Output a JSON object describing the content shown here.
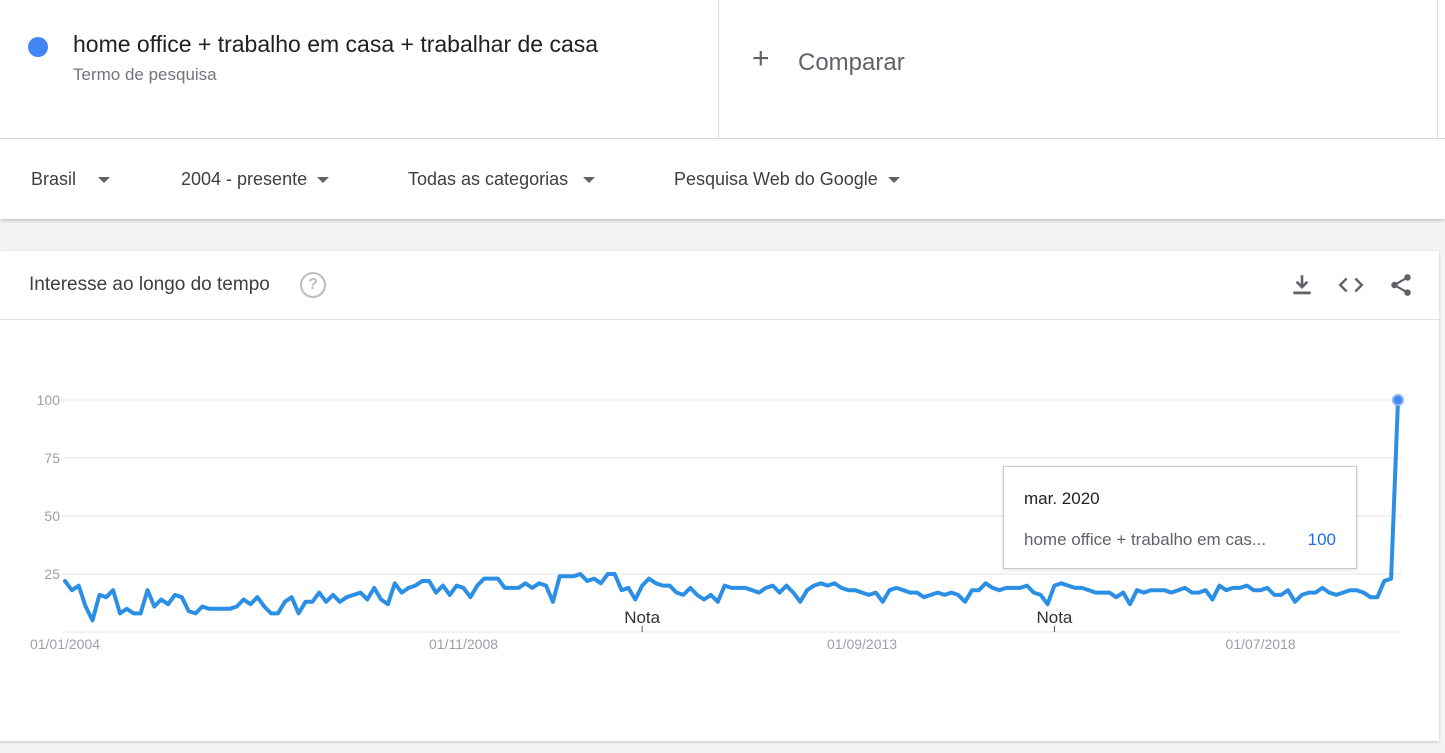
{
  "term": {
    "title": "home office + trabalho em casa + trabalhar de casa",
    "subtitle": "Termo de pesquisa",
    "color": "#4285f4"
  },
  "compare": {
    "label": "Comparar"
  },
  "filters": {
    "region": "Brasil",
    "period": "2004 - presente",
    "category": "Todas as categorias",
    "search_type": "Pesquisa Web do Google"
  },
  "card": {
    "title": "Interesse ao longo do tempo",
    "help_icon": "help-circle-icon",
    "icons": [
      "download-icon",
      "embed-icon",
      "share-icon"
    ]
  },
  "tooltip": {
    "date": "mar. 2020",
    "series": "home office + trabalho em cas...",
    "value": "100"
  },
  "chart_data": {
    "type": "line",
    "series_color": "#2b8fe6",
    "ylim": [
      0,
      100
    ],
    "y_ticks": [
      "25",
      "50",
      "75",
      "100"
    ],
    "x_ticks": [
      "01/01/2004",
      "01/11/2008",
      "01/09/2013",
      "01/07/2018"
    ],
    "annotations": [
      {
        "label": "Nota",
        "date": "2011-01"
      },
      {
        "label": "Nota",
        "date": "2016-01"
      }
    ],
    "start": "2004-01",
    "end": "2020-03",
    "series": [
      {
        "values": [
          22,
          18,
          20,
          11,
          5,
          16,
          15,
          18,
          8,
          10,
          8,
          8,
          18,
          11,
          14,
          12,
          16,
          15,
          9,
          8,
          11,
          10,
          10,
          10,
          10,
          11,
          14,
          12,
          15,
          11,
          8,
          8,
          13,
          15,
          8,
          13,
          13,
          17,
          13,
          16,
          13,
          15,
          16,
          17,
          14,
          19,
          14,
          12,
          21,
          17,
          19,
          20,
          22,
          22,
          17,
          20,
          16,
          20,
          19,
          15,
          20,
          23,
          23,
          23,
          19,
          19,
          19,
          21,
          19,
          21,
          20,
          13,
          24,
          24,
          24,
          25,
          22,
          23,
          21,
          25,
          25,
          18,
          19,
          14,
          20,
          23,
          21,
          20,
          20,
          17,
          16,
          19,
          16,
          14,
          16,
          13,
          20,
          19,
          19,
          19,
          18,
          17,
          19,
          20,
          17,
          20,
          17,
          13,
          18,
          20,
          21,
          20,
          21,
          19,
          18,
          18,
          17,
          16,
          17,
          13,
          18,
          19,
          18,
          17,
          17,
          15,
          16,
          17,
          16,
          17,
          16,
          13,
          18,
          18,
          21,
          19,
          18,
          19,
          19,
          19,
          20,
          17,
          16,
          12,
          20,
          21,
          20,
          19,
          19,
          18,
          17,
          17,
          17,
          15,
          17,
          12,
          18,
          17,
          18,
          18,
          18,
          17,
          18,
          19,
          17,
          17,
          18,
          14,
          20,
          18,
          19,
          19,
          20,
          18,
          18,
          19,
          16,
          16,
          18,
          13,
          16,
          17,
          17,
          19,
          17,
          16,
          17,
          18,
          18,
          17,
          15,
          15,
          22,
          23,
          100
        ]
      }
    ]
  }
}
